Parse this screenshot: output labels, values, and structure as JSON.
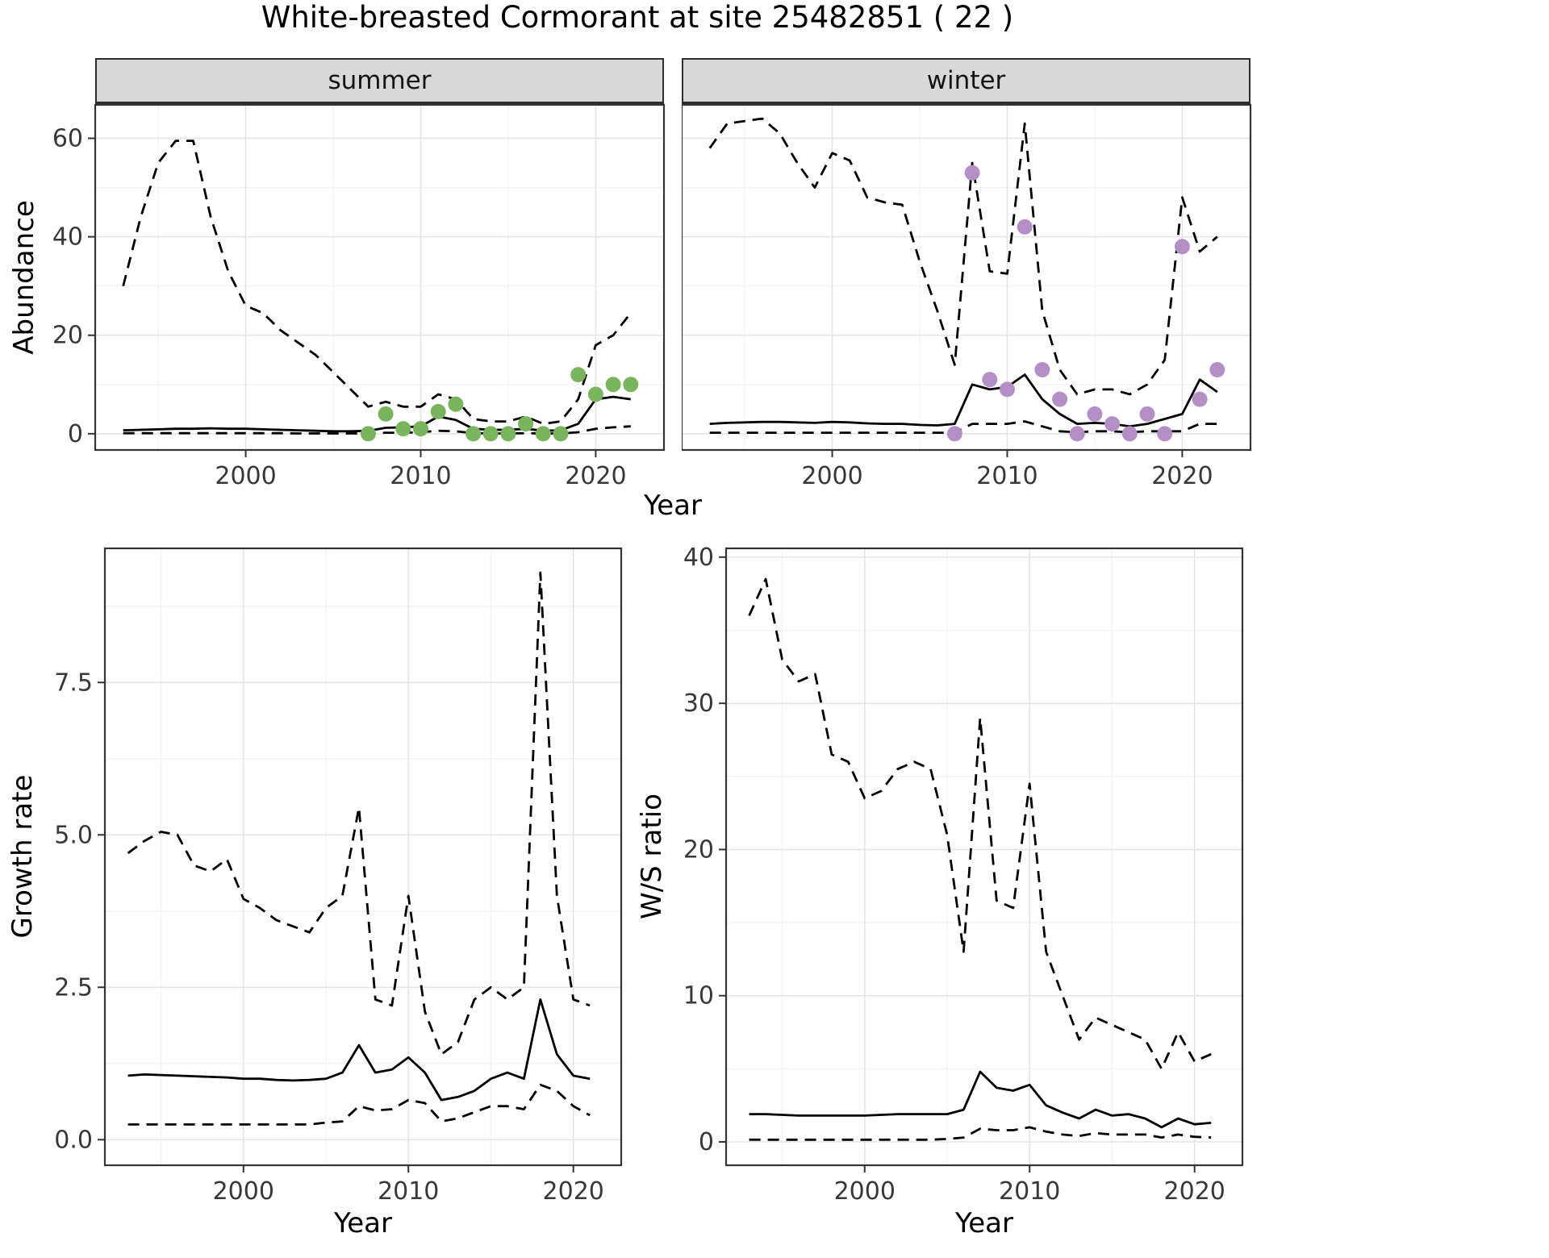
{
  "title": "White-breasted Cormorant at site 25482851 ( 22 )",
  "colors": {
    "line": "#000000",
    "grid_major": "#e4e4e4",
    "grid_minor": "#f2f2f2",
    "panel_border": "#333333",
    "tick": "#333333",
    "tick_text": "#383838",
    "strip_bg": "#d9d9d9",
    "summer_points": "#7ab45e",
    "winter_points": "#b48fc6"
  },
  "chart_data": [
    {
      "id": "abundance_summer",
      "type": "line",
      "facet": "summer",
      "ylabel": "Abundance",
      "xlabel": "Year",
      "xlim": [
        1991.4,
        2023.9
      ],
      "ylim": [
        -3.3,
        66.8
      ],
      "xtick_values": [
        2000,
        2010,
        2020
      ],
      "xtick_labels": [
        "2000",
        "2010",
        "2020"
      ],
      "ytick_values": [
        0,
        20,
        40,
        60
      ],
      "ytick_labels": [
        "0",
        "20",
        "40",
        "60"
      ],
      "xminor": [
        1995,
        2005,
        2015
      ],
      "yminor": [
        10,
        30,
        50
      ],
      "x": [
        1993,
        1994,
        1995,
        1996,
        1997,
        1998,
        1999,
        2000,
        2001,
        2002,
        2003,
        2004,
        2005,
        2006,
        2007,
        2008,
        2009,
        2010,
        2011,
        2012,
        2013,
        2014,
        2015,
        2016,
        2017,
        2018,
        2019,
        2020,
        2021,
        2022
      ],
      "series": [
        {
          "name": "upper_95ci",
          "style": "dashed",
          "values": [
            30,
            44,
            55,
            59.5,
            59.5,
            44,
            33,
            26,
            24.5,
            21,
            18.5,
            16,
            12.5,
            9,
            5.5,
            6.5,
            5.5,
            5.5,
            8,
            7,
            3,
            2.5,
            2.5,
            3.5,
            2,
            2.5,
            7,
            18,
            20,
            24.5
          ]
        },
        {
          "name": "median",
          "style": "solid",
          "values": [
            0.7,
            0.8,
            0.9,
            1,
            1,
            1.1,
            1,
            1,
            0.9,
            0.8,
            0.7,
            0.6,
            0.5,
            0.5,
            0.6,
            1.2,
            1.3,
            1.5,
            3.5,
            2.8,
            1,
            0.8,
            0.8,
            1,
            0.6,
            0.7,
            2,
            7,
            7.5,
            7
          ]
        },
        {
          "name": "lower_95ci",
          "style": "dashed",
          "values": [
            0.1,
            0.1,
            0.1,
            0.1,
            0.1,
            0.1,
            0.1,
            0.1,
            0.1,
            0.1,
            0.05,
            0.05,
            0.05,
            0.05,
            0.05,
            0.2,
            0.2,
            0.3,
            0.6,
            0.5,
            0.1,
            0.05,
            0.05,
            0.1,
            0.05,
            0.05,
            0.3,
            1,
            1.3,
            1.5
          ]
        }
      ],
      "points": {
        "name": "observed_counts",
        "color": "#7ab45e",
        "x": [
          2007,
          2008,
          2009,
          2010,
          2011,
          2012,
          2013,
          2014,
          2015,
          2016,
          2017,
          2018,
          2019,
          2020,
          2021,
          2022
        ],
        "y": [
          0,
          4,
          1,
          1,
          4.5,
          6,
          0,
          0,
          0,
          2,
          0,
          0,
          12,
          8,
          10,
          10
        ]
      }
    },
    {
      "id": "abundance_winter",
      "type": "line",
      "facet": "winter",
      "ylabel": "Abundance",
      "xlabel": "Year",
      "xlim": [
        1991.4,
        2023.9
      ],
      "ylim": [
        -3.3,
        66.8
      ],
      "xtick_values": [
        2000,
        2010,
        2020
      ],
      "xtick_labels": [
        "2000",
        "2010",
        "2020"
      ],
      "ytick_values": [
        0,
        20,
        40,
        60
      ],
      "ytick_labels": [
        "0",
        "20",
        "40",
        "60"
      ],
      "xminor": [
        1995,
        2005,
        2015
      ],
      "yminor": [
        10,
        30,
        50
      ],
      "x": [
        1993,
        1994,
        1995,
        1996,
        1997,
        1998,
        1999,
        2000,
        2001,
        2002,
        2003,
        2004,
        2005,
        2006,
        2007,
        2008,
        2009,
        2010,
        2011,
        2012,
        2013,
        2014,
        2015,
        2016,
        2017,
        2018,
        2019,
        2020,
        2021,
        2022
      ],
      "series": [
        {
          "name": "upper_95ci",
          "style": "dashed",
          "values": [
            58,
            63,
            63.5,
            64,
            61,
            55,
            50,
            57,
            55.5,
            48,
            47,
            46.5,
            35,
            25,
            14,
            55,
            33,
            32.5,
            63,
            25,
            13,
            8,
            9,
            9,
            8,
            10,
            15,
            48,
            37,
            40
          ]
        },
        {
          "name": "median",
          "style": "solid",
          "values": [
            2,
            2.2,
            2.3,
            2.4,
            2.4,
            2.3,
            2.2,
            2.4,
            2.3,
            2.1,
            2,
            2,
            1.8,
            1.7,
            2,
            10,
            9,
            9.5,
            12,
            7,
            4,
            2,
            2.2,
            2,
            1.5,
            2,
            3,
            4,
            11,
            8.5
          ]
        },
        {
          "name": "lower_95ci",
          "style": "dashed",
          "values": [
            0.2,
            0.2,
            0.2,
            0.2,
            0.2,
            0.2,
            0.2,
            0.2,
            0.2,
            0.2,
            0.2,
            0.2,
            0.2,
            0.2,
            0.2,
            2,
            2,
            2,
            2.5,
            1.5,
            0.5,
            0.3,
            0.5,
            0.5,
            0.3,
            0.5,
            0.5,
            0.5,
            2,
            2
          ]
        }
      ],
      "points": {
        "name": "observed_counts",
        "color": "#b48fc6",
        "x": [
          2007,
          2008,
          2009,
          2010,
          2011,
          2012,
          2013,
          2014,
          2015,
          2016,
          2017,
          2018,
          2019,
          2020,
          2021,
          2022
        ],
        "y": [
          0,
          53,
          11,
          9,
          42,
          13,
          7,
          0,
          4,
          2,
          0,
          4,
          0,
          38,
          7,
          13
        ]
      }
    },
    {
      "id": "growth_rate",
      "type": "line",
      "facet": "",
      "ylabel": "Growth rate",
      "xlabel": "Year",
      "xlim": [
        1991.6,
        2022.9
      ],
      "ylim": [
        -0.42,
        9.7
      ],
      "xtick_values": [
        2000,
        2010,
        2020
      ],
      "xtick_labels": [
        "2000",
        "2010",
        "2020"
      ],
      "ytick_values": [
        0,
        2.5,
        5,
        7.5
      ],
      "ytick_labels": [
        "0.0",
        "2.5",
        "5.0",
        "7.5"
      ],
      "xminor": [
        1995,
        2005,
        2015
      ],
      "yminor": [
        1.25,
        3.75,
        6.25,
        8.75
      ],
      "x": [
        1993,
        1994,
        1995,
        1996,
        1997,
        1998,
        1999,
        2000,
        2001,
        2002,
        2003,
        2004,
        2005,
        2006,
        2007,
        2008,
        2009,
        2010,
        2011,
        2012,
        2013,
        2014,
        2015,
        2016,
        2017,
        2018,
        2019,
        2020,
        2021
      ],
      "series": [
        {
          "name": "upper_95ci",
          "style": "dashed",
          "values": [
            4.7,
            4.9,
            5.05,
            5,
            4.5,
            4.4,
            4.6,
            3.95,
            3.8,
            3.6,
            3.5,
            3.4,
            3.8,
            4,
            5.45,
            2.3,
            2.2,
            4,
            2.1,
            1.4,
            1.6,
            2.3,
            2.5,
            2.3,
            2.5,
            9.3,
            4,
            2.3,
            2.2
          ]
        },
        {
          "name": "median",
          "style": "solid",
          "values": [
            1.05,
            1.07,
            1.06,
            1.05,
            1.04,
            1.03,
            1.02,
            1,
            1,
            0.98,
            0.97,
            0.98,
            1,
            1.1,
            1.55,
            1.1,
            1.15,
            1.35,
            1.1,
            0.65,
            0.7,
            0.8,
            1,
            1.1,
            1,
            2.3,
            1.4,
            1.05,
            1
          ]
        },
        {
          "name": "lower_95ci",
          "style": "dashed",
          "values": [
            0.25,
            0.25,
            0.25,
            0.25,
            0.25,
            0.25,
            0.25,
            0.25,
            0.25,
            0.25,
            0.25,
            0.25,
            0.28,
            0.3,
            0.55,
            0.48,
            0.5,
            0.65,
            0.6,
            0.3,
            0.35,
            0.45,
            0.55,
            0.55,
            0.5,
            0.9,
            0.8,
            0.55,
            0.4
          ]
        }
      ],
      "points": null
    },
    {
      "id": "ws_ratio",
      "type": "line",
      "facet": "",
      "ylabel": "W/S ratio",
      "xlabel": "Year",
      "xlim": [
        1991.6,
        2022.9
      ],
      "ylim": [
        -1.6,
        40.6
      ],
      "xtick_values": [
        2000,
        2010,
        2020
      ],
      "xtick_labels": [
        "2000",
        "2010",
        "2020"
      ],
      "ytick_values": [
        0,
        10,
        20,
        30,
        40
      ],
      "ytick_labels": [
        "0",
        "10",
        "20",
        "30",
        "40"
      ],
      "xminor": [
        1995,
        2005,
        2015
      ],
      "yminor": [
        5,
        15,
        25,
        35
      ],
      "x": [
        1993,
        1994,
        1995,
        1996,
        1997,
        1998,
        1999,
        2000,
        2001,
        2002,
        2003,
        2004,
        2005,
        2006,
        2007,
        2008,
        2009,
        2010,
        2011,
        2012,
        2013,
        2014,
        2015,
        2016,
        2017,
        2018,
        2019,
        2020,
        2021
      ],
      "series": [
        {
          "name": "upper_95ci",
          "style": "dashed",
          "values": [
            36,
            38.5,
            33,
            31.5,
            32,
            26.5,
            26,
            23.5,
            24,
            25.5,
            26,
            25.5,
            21,
            13,
            29,
            16.5,
            16,
            24.5,
            13,
            10,
            7,
            8.5,
            8,
            7.5,
            7,
            5,
            7.5,
            5.5,
            6
          ]
        },
        {
          "name": "median",
          "style": "solid",
          "values": [
            1.9,
            1.9,
            1.85,
            1.8,
            1.8,
            1.8,
            1.8,
            1.8,
            1.85,
            1.9,
            1.9,
            1.9,
            1.9,
            2.2,
            4.8,
            3.7,
            3.5,
            3.9,
            2.5,
            2,
            1.6,
            2.2,
            1.8,
            1.9,
            1.6,
            1,
            1.6,
            1.2,
            1.3
          ]
        },
        {
          "name": "lower_95ci",
          "style": "dashed",
          "values": [
            0.15,
            0.15,
            0.15,
            0.15,
            0.15,
            0.15,
            0.15,
            0.15,
            0.15,
            0.15,
            0.15,
            0.15,
            0.2,
            0.3,
            0.9,
            0.8,
            0.8,
            1,
            0.7,
            0.5,
            0.4,
            0.6,
            0.5,
            0.5,
            0.5,
            0.3,
            0.5,
            0.35,
            0.3
          ]
        }
      ],
      "points": null
    }
  ]
}
